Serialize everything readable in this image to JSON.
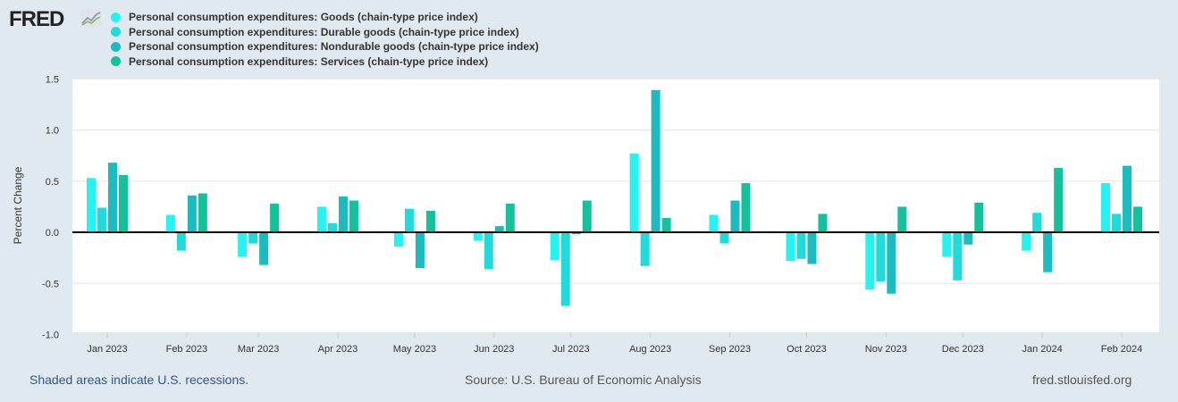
{
  "logo": "FRED",
  "chart_data": {
    "type": "bar",
    "ylabel": "Percent Change",
    "ylim": [
      -1.0,
      1.5
    ],
    "yticks": [
      "1.5",
      "1.0",
      "0.5",
      "0.0",
      "-0.5",
      "-1.0"
    ],
    "ytick_values": [
      1.5,
      1.0,
      0.5,
      0.0,
      -0.5,
      -1.0
    ],
    "categories": [
      "Jan 2023",
      "Feb 2023",
      "Mar 2023",
      "Apr 2023",
      "May 2023",
      "Jun 2023",
      "Jul 2023",
      "Aug 2023",
      "Sep 2023",
      "Oct 2023",
      "Nov 2023",
      "Dec 2023",
      "Jan 2024",
      "Feb 2024"
    ],
    "category_days": [
      0,
      31,
      59,
      90,
      120,
      151,
      181,
      212,
      243,
      273,
      304,
      334,
      365,
      396
    ],
    "grid": true,
    "legend_position": "top-left",
    "series": [
      {
        "name": "Personal consumption expenditures: Goods (chain-type price index)",
        "color": "#22f3f3",
        "values": [
          0.53,
          0.17,
          -0.24,
          0.25,
          -0.14,
          -0.08,
          -0.27,
          0.77,
          0.17,
          -0.28,
          -0.56,
          -0.24,
          -0.18,
          0.48
        ]
      },
      {
        "name": "Personal consumption expenditures: Durable goods (chain-type price index)",
        "color": "#1fdcdc",
        "values": [
          0.24,
          -0.18,
          -0.11,
          0.09,
          0.23,
          -0.36,
          -0.72,
          -0.33,
          -0.11,
          -0.26,
          -0.48,
          -0.47,
          0.19,
          0.18
        ]
      },
      {
        "name": "Personal consumption expenditures: Nondurable goods (chain-type price index)",
        "color": "#19bcc0",
        "values": [
          0.68,
          0.36,
          -0.32,
          0.35,
          -0.35,
          0.06,
          -0.02,
          1.39,
          0.31,
          -0.31,
          -0.6,
          -0.12,
          -0.39,
          0.65
        ]
      },
      {
        "name": "Personal consumption expenditures: Services (chain-type price index)",
        "color": "#12c29c",
        "values": [
          0.56,
          0.38,
          0.28,
          0.31,
          0.21,
          0.28,
          0.31,
          0.14,
          0.48,
          0.18,
          0.25,
          0.29,
          0.63,
          0.25
        ]
      }
    ]
  },
  "footer": {
    "recession_note": "Shaded areas indicate U.S. recessions.",
    "source": "Source: U.S. Bureau of Economic Analysis",
    "site": "fred.stlouisfed.org"
  }
}
